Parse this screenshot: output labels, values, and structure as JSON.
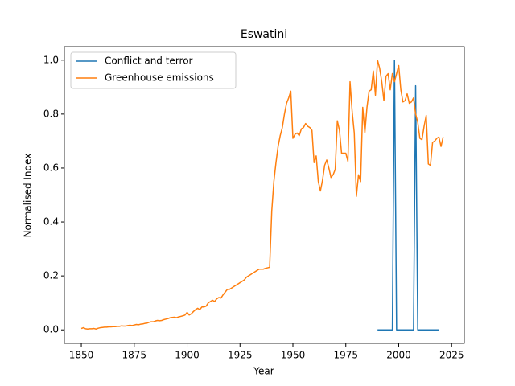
{
  "chart_data": {
    "type": "line",
    "title": "Eswatini",
    "x_label": "Year",
    "y_label": "Normalised Index",
    "xlim": [
      1842,
      2031
    ],
    "xticks": [
      1850,
      1875,
      1900,
      1925,
      1950,
      1975,
      2000,
      2025
    ],
    "ylim": [
      -0.05,
      1.05
    ],
    "yticks": [
      {
        "value": 0,
        "label": "0.0"
      },
      {
        "value": 0.2,
        "label": "0.2"
      },
      {
        "value": 0.4,
        "label": "0.4"
      },
      {
        "value": 0.6,
        "label": "0.6"
      },
      {
        "value": 0.8,
        "label": "0.8"
      },
      {
        "value": 1,
        "label": "1.0"
      }
    ],
    "legend": "upper left",
    "series": [
      {
        "name": "Conflict and terror",
        "color": "#1f77b4",
        "x": [
          1990,
          1991,
          1992,
          1993,
          1994,
          1995,
          1996,
          1997,
          1998,
          1999,
          2000,
          2001,
          2002,
          2003,
          2004,
          2005,
          2006,
          2007,
          2008,
          2009,
          2010,
          2011,
          2012,
          2013,
          2014,
          2015,
          2016,
          2017,
          2018,
          2019
        ],
        "values": [
          0,
          0,
          0,
          0,
          0,
          0,
          0,
          0,
          1.0,
          0,
          0,
          0,
          0,
          0,
          0,
          0,
          0,
          0,
          0.905,
          0,
          0,
          0,
          0,
          0,
          0,
          0,
          0,
          0,
          0,
          0
        ]
      },
      {
        "name": "Greenhouse emissions",
        "color": "#ff7f0e",
        "x": [
          1850,
          1851,
          1852,
          1853,
          1854,
          1855,
          1856,
          1857,
          1858,
          1859,
          1860,
          1861,
          1862,
          1863,
          1864,
          1865,
          1866,
          1867,
          1868,
          1869,
          1870,
          1871,
          1872,
          1873,
          1874,
          1875,
          1876,
          1877,
          1878,
          1879,
          1880,
          1881,
          1882,
          1883,
          1884,
          1885,
          1886,
          1887,
          1888,
          1889,
          1890,
          1891,
          1892,
          1893,
          1894,
          1895,
          1896,
          1897,
          1898,
          1899,
          1900,
          1901,
          1902,
          1903,
          1904,
          1905,
          1906,
          1907,
          1908,
          1909,
          1910,
          1911,
          1912,
          1913,
          1914,
          1915,
          1916,
          1917,
          1918,
          1919,
          1920,
          1921,
          1922,
          1923,
          1924,
          1925,
          1926,
          1927,
          1928,
          1929,
          1930,
          1931,
          1932,
          1933,
          1934,
          1935,
          1936,
          1937,
          1938,
          1939,
          1940,
          1941,
          1942,
          1943,
          1944,
          1945,
          1946,
          1947,
          1948,
          1949,
          1950,
          1951,
          1952,
          1953,
          1954,
          1955,
          1956,
          1957,
          1958,
          1959,
          1960,
          1961,
          1962,
          1963,
          1964,
          1965,
          1966,
          1967,
          1968,
          1969,
          1970,
          1971,
          1972,
          1973,
          1974,
          1975,
          1976,
          1977,
          1978,
          1979,
          1980,
          1981,
          1982,
          1983,
          1984,
          1985,
          1986,
          1987,
          1988,
          1989,
          1990,
          1991,
          1992,
          1993,
          1994,
          1995,
          1996,
          1997,
          1998,
          1999,
          2000,
          2001,
          2002,
          2003,
          2004,
          2005,
          2006,
          2007,
          2008,
          2009,
          2010,
          2011,
          2012,
          2013,
          2014,
          2015,
          2016,
          2017,
          2018,
          2019,
          2020,
          2021
        ],
        "values": [
          0.005,
          0.008,
          0.004,
          0.003,
          0.004,
          0.004,
          0.005,
          0.003,
          0.006,
          0.008,
          0.009,
          0.01,
          0.01,
          0.011,
          0.011,
          0.012,
          0.012,
          0.013,
          0.013,
          0.015,
          0.014,
          0.014,
          0.016,
          0.017,
          0.016,
          0.018,
          0.02,
          0.019,
          0.021,
          0.022,
          0.024,
          0.025,
          0.028,
          0.03,
          0.03,
          0.033,
          0.035,
          0.034,
          0.035,
          0.038,
          0.04,
          0.042,
          0.045,
          0.046,
          0.047,
          0.045,
          0.048,
          0.05,
          0.052,
          0.055,
          0.065,
          0.055,
          0.06,
          0.068,
          0.075,
          0.08,
          0.075,
          0.085,
          0.085,
          0.088,
          0.1,
          0.105,
          0.11,
          0.105,
          0.115,
          0.12,
          0.118,
          0.13,
          0.14,
          0.15,
          0.15,
          0.155,
          0.16,
          0.165,
          0.17,
          0.175,
          0.18,
          0.185,
          0.195,
          0.2,
          0.205,
          0.21,
          0.215,
          0.22,
          0.225,
          0.225,
          0.225,
          0.228,
          0.23,
          0.232,
          0.44,
          0.55,
          0.62,
          0.68,
          0.72,
          0.75,
          0.8,
          0.84,
          0.86,
          0.885,
          0.71,
          0.725,
          0.73,
          0.72,
          0.745,
          0.75,
          0.765,
          0.755,
          0.75,
          0.74,
          0.62,
          0.645,
          0.55,
          0.515,
          0.555,
          0.61,
          0.63,
          0.6,
          0.565,
          0.575,
          0.595,
          0.775,
          0.74,
          0.655,
          0.655,
          0.655,
          0.625,
          0.92,
          0.81,
          0.73,
          0.495,
          0.575,
          0.55,
          0.825,
          0.73,
          0.825,
          0.885,
          0.89,
          0.96,
          0.87,
          1.0,
          0.97,
          0.92,
          0.85,
          0.94,
          0.95,
          0.89,
          0.95,
          0.92,
          0.95,
          0.98,
          0.89,
          0.845,
          0.85,
          0.875,
          0.84,
          0.845,
          0.86,
          0.8,
          0.77,
          0.71,
          0.705,
          0.755,
          0.795,
          0.615,
          0.61,
          0.695,
          0.7,
          0.71,
          0.715,
          0.68,
          0.715
        ]
      }
    ]
  }
}
